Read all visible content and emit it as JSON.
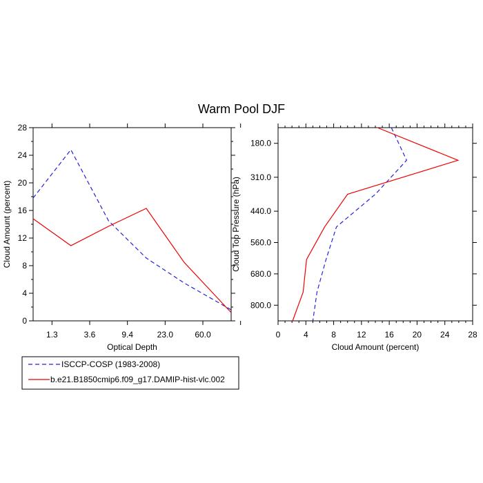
{
  "title": "Warm Pool DJF",
  "colors": {
    "isccp": "#2222dd",
    "model": "#ee0000"
  },
  "legend": {
    "entries": [
      {
        "label": "ISCCP-COSP (1983-2008)",
        "color": "#2222dd",
        "dash": "dashed"
      },
      {
        "label": "b.e21.B1850cmip6.f09_g17.DAMIP-hist-vlc.002",
        "color": "#ee0000",
        "dash": "solid"
      }
    ]
  },
  "chart_data": [
    {
      "type": "line",
      "xlabel": "Optical Depth",
      "ylabel": "Cloud Amount (percent)",
      "x_index": [
        0,
        1,
        2,
        3,
        4,
        5,
        6
      ],
      "xticks": {
        "positions": [
          0.5,
          1.5,
          2.5,
          3.5,
          4.5,
          5.5
        ],
        "labels": [
          "1.3",
          "3.6",
          "9.4",
          "23.0",
          "60.0"
        ]
      },
      "x_tick_label_positions": [
        0.5,
        1.5,
        2.5,
        3.5,
        4.5
      ],
      "xlim": [
        0,
        5.25
      ],
      "ylim": [
        0,
        28
      ],
      "yticks": [
        0,
        4,
        8,
        12,
        16,
        20,
        24,
        28
      ],
      "series": [
        {
          "name": "ISCCP-COSP (1983-2008)",
          "x": [
            0,
            1,
            2,
            3,
            4,
            5.25
          ],
          "y": [
            17.8,
            24.8,
            14.5,
            9.1,
            5.5,
            1.6
          ]
        },
        {
          "name": "b.e21.B1850cmip6.f09_g17.DAMIP-hist-vlc.002",
          "x": [
            0,
            1,
            2,
            3,
            4,
            5.25
          ],
          "y": [
            14.8,
            10.9,
            13.7,
            16.3,
            8.5,
            1.2
          ]
        }
      ]
    },
    {
      "type": "line",
      "xlabel": "Cloud Amount (percent)",
      "ylabel": "Cloud Top Pressure (hPa)",
      "xlim": [
        0,
        28
      ],
      "xticks": [
        0,
        4,
        8,
        12,
        16,
        20,
        24,
        28
      ],
      "ylim": [
        120,
        860
      ],
      "ytick_values": [
        180,
        310,
        440,
        560,
        680,
        800
      ],
      "ytick_labels": [
        "180.0",
        "310.0",
        "440.0",
        "560.0",
        "680.0",
        "800.0"
      ],
      "series": [
        {
          "name": "ISCCP-COSP (1983-2008)",
          "pressure": [
            120,
            245,
            375,
            500,
            625,
            750,
            860
          ],
          "values": [
            16.3,
            18.5,
            14.0,
            8.4,
            6.9,
            5.6,
            5.0
          ]
        },
        {
          "name": "b.e21.B1850cmip6.f09_g17.DAMIP-hist-vlc.002",
          "pressure": [
            120,
            245,
            375,
            500,
            625,
            750,
            860
          ],
          "values": [
            14.3,
            25.9,
            10.0,
            6.7,
            4.1,
            3.6,
            2.1
          ]
        }
      ]
    }
  ]
}
